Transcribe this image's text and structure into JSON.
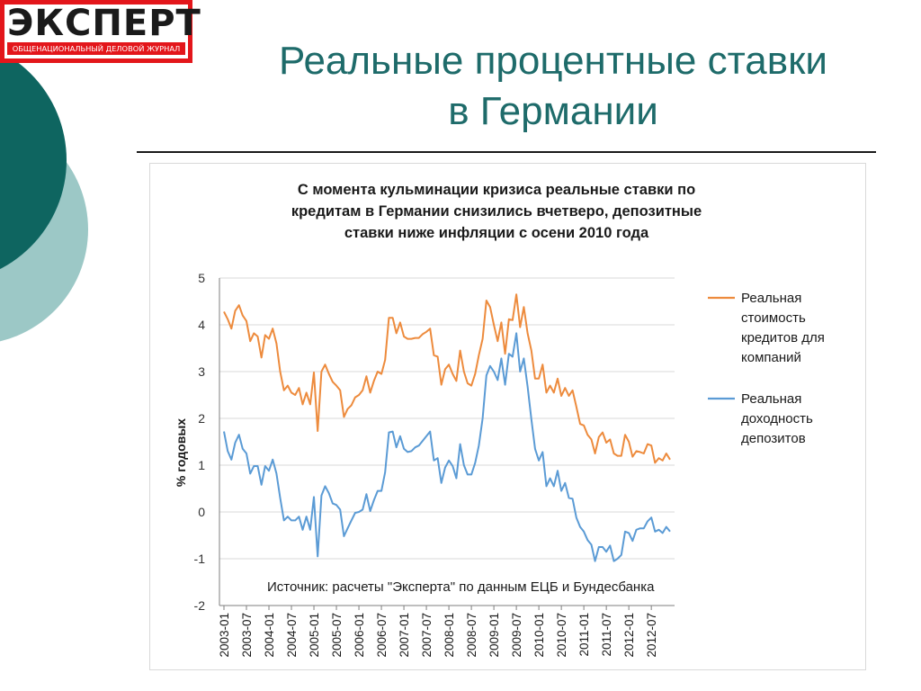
{
  "header": {
    "logo_text": "ЭКСПЕРТ",
    "logo_subtitle": "ОБЩЕНАЦИОНАЛЬНЫЙ ДЕЛОВОЙ ЖУРНАЛ",
    "title_line1": "Реальные процентные ставки",
    "title_line2": "в Германии"
  },
  "colors": {
    "title": "#1e6b6a",
    "deco_dark": "#0e6560",
    "deco_light": "#9cc8c6",
    "logo_red": "#e3161b"
  },
  "chart_data": {
    "type": "line",
    "title": [
      "С момента кульминации кризиса реальные ставки по",
      "кредитам в Германии снизились вчетверо, депозитные",
      "ставки ниже инфляции с осени 2010 года"
    ],
    "ylabel": "% годовых",
    "xlabel": "",
    "ylim": [
      -2,
      5
    ],
    "y_ticks": [
      "-2",
      "-1",
      "0",
      "1",
      "2",
      "3",
      "4",
      "5"
    ],
    "x_ticks": [
      "2003-01",
      "2003-07",
      "2004-01",
      "2004-07",
      "2005-01",
      "2005-07",
      "2006-01",
      "2006-07",
      "2007-01",
      "2007-07",
      "2008-01",
      "2008-07",
      "2009-01",
      "2009-07",
      "2010-01",
      "2010-07",
      "2011-01",
      "2011-07",
      "2012-01",
      "2012-07"
    ],
    "x_start": "2003-01",
    "grid": "horizontal",
    "legend_position": "right",
    "annotation": "Источник: расчеты \"Эксперта\" по данным ЕЦБ и Бундесбанка",
    "series": [
      {
        "name": "Реальная стоимость кредитов для компаний",
        "color": "#ed8b3d",
        "legend_lines": [
          "Реальная",
          "стоимость",
          "кредитов для",
          "компаний"
        ],
        "values": [
          4.28,
          4.12,
          3.92,
          4.3,
          4.42,
          4.2,
          4.08,
          3.65,
          3.82,
          3.75,
          3.3,
          3.78,
          3.7,
          3.92,
          3.6,
          3.0,
          2.6,
          2.7,
          2.55,
          2.5,
          2.65,
          2.3,
          2.55,
          2.3,
          2.98,
          1.73,
          3.0,
          3.15,
          2.95,
          2.78,
          2.7,
          2.6,
          2.03,
          2.2,
          2.28,
          2.45,
          2.5,
          2.6,
          2.9,
          2.55,
          2.8,
          3.0,
          2.95,
          3.25,
          4.15,
          4.15,
          3.82,
          4.05,
          3.75,
          3.7,
          3.7,
          3.72,
          3.72,
          3.8,
          3.85,
          3.92,
          3.35,
          3.32,
          2.72,
          3.05,
          3.15,
          2.95,
          2.8,
          3.45,
          3.0,
          2.75,
          2.7,
          2.95,
          3.35,
          3.7,
          4.52,
          4.38,
          4.0,
          3.65,
          4.05,
          3.38,
          4.12,
          4.1,
          4.65,
          3.95,
          4.38,
          3.82,
          3.45,
          2.85,
          2.85,
          3.15,
          2.55,
          2.7,
          2.55,
          2.85,
          2.48,
          2.65,
          2.48,
          2.6,
          2.25,
          1.88,
          1.85,
          1.65,
          1.55,
          1.25,
          1.6,
          1.7,
          1.48,
          1.55,
          1.25,
          1.2,
          1.2,
          1.65,
          1.5,
          1.18,
          1.3,
          1.28,
          1.25,
          1.45,
          1.42,
          1.05,
          1.15,
          1.1,
          1.25,
          1.12
        ]
      },
      {
        "name": "Реальная доходность депозитов",
        "color": "#5b9bd5",
        "legend_lines": [
          "Реальная",
          "доходность",
          "депозитов"
        ],
        "values": [
          1.72,
          1.3,
          1.12,
          1.48,
          1.65,
          1.35,
          1.25,
          0.82,
          0.98,
          0.98,
          0.58,
          0.98,
          0.88,
          1.12,
          0.82,
          0.3,
          -0.18,
          -0.1,
          -0.18,
          -0.18,
          -0.1,
          -0.38,
          -0.1,
          -0.38,
          0.32,
          -0.95,
          0.35,
          0.55,
          0.4,
          0.18,
          0.15,
          0.05,
          -0.52,
          -0.35,
          -0.18,
          -0.02,
          0.0,
          0.05,
          0.38,
          0.02,
          0.25,
          0.45,
          0.45,
          0.85,
          1.7,
          1.72,
          1.38,
          1.62,
          1.35,
          1.28,
          1.3,
          1.38,
          1.42,
          1.52,
          1.62,
          1.72,
          1.1,
          1.15,
          0.62,
          0.95,
          1.1,
          0.98,
          0.72,
          1.45,
          1.0,
          0.8,
          0.8,
          1.05,
          1.42,
          2.0,
          2.92,
          3.12,
          3.0,
          2.82,
          3.28,
          2.72,
          3.38,
          3.32,
          3.82,
          3.0,
          3.28,
          2.68,
          1.98,
          1.35,
          1.1,
          1.28,
          0.55,
          0.72,
          0.55,
          0.88,
          0.45,
          0.62,
          0.3,
          0.28,
          -0.12,
          -0.32,
          -0.42,
          -0.6,
          -0.7,
          -1.05,
          -0.75,
          -0.75,
          -0.85,
          -0.72,
          -1.05,
          -1.0,
          -0.92,
          -0.42,
          -0.45,
          -0.62,
          -0.38,
          -0.35,
          -0.35,
          -0.2,
          -0.12,
          -0.42,
          -0.38,
          -0.45,
          -0.32,
          -0.42
        ]
      }
    ]
  }
}
